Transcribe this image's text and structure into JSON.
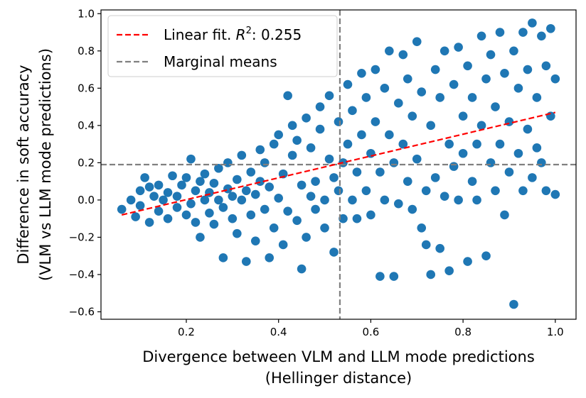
{
  "chart_data": {
    "type": "scatter",
    "xlabel_line1": "Divergence between VLM and LLM mode predictions",
    "xlabel_line2": "(Hellinger distance)",
    "ylabel_line1": "Difference in soft accuracy",
    "ylabel_line2": "(VLM vs LLM mode predictions)",
    "xlim": [
      0.015,
      1.045
    ],
    "ylim": [
      -0.64,
      1.02
    ],
    "xticks": [
      0.2,
      0.4,
      0.6,
      0.8,
      1.0
    ],
    "xtick_labels": [
      "0.2",
      "0.4",
      "0.6",
      "0.8",
      "1.0"
    ],
    "yticks": [
      -0.6,
      -0.4,
      -0.2,
      0.0,
      0.2,
      0.4,
      0.6,
      0.8,
      1.0
    ],
    "ytick_labels": [
      "−0.6",
      "−0.4",
      "−0.2",
      "0.0",
      "0.2",
      "0.4",
      "0.6",
      "0.8",
      "1.0"
    ],
    "legend": [
      {
        "label": "Linear fit. ",
        "math_label": "R",
        "superscript": "2",
        "value_label": ": 0.255",
        "color": "#ff0000",
        "style": "dashed"
      },
      {
        "label": "Marginal means",
        "color": "#808080",
        "style": "dashed"
      }
    ],
    "legend_position": "top-left",
    "fit_line": {
      "x": [
        0.06,
        1.0
      ],
      "y": [
        -0.08,
        0.47
      ],
      "color": "#ff0000"
    },
    "marginal_means": {
      "x": 0.533,
      "y": 0.19,
      "color": "#808080"
    },
    "series": [
      {
        "name": "points",
        "color": "#1f77b4",
        "points": [
          [
            0.06,
            -0.05
          ],
          [
            0.08,
            0.0
          ],
          [
            0.09,
            -0.09
          ],
          [
            0.1,
            0.05
          ],
          [
            0.1,
            -0.03
          ],
          [
            0.11,
            0.12
          ],
          [
            0.12,
            0.07
          ],
          [
            0.12,
            -0.12
          ],
          [
            0.13,
            0.02
          ],
          [
            0.14,
            0.08
          ],
          [
            0.14,
            -0.06
          ],
          [
            0.15,
            0.0
          ],
          [
            0.16,
            0.04
          ],
          [
            0.16,
            -0.1
          ],
          [
            0.17,
            0.13
          ],
          [
            0.18,
            0.02
          ],
          [
            0.18,
            -0.04
          ],
          [
            0.19,
            0.08
          ],
          [
            0.2,
            -0.08
          ],
          [
            0.2,
            0.12
          ],
          [
            0.21,
            0.22
          ],
          [
            0.21,
            -0.02
          ],
          [
            0.22,
            0.05
          ],
          [
            0.22,
            -0.12
          ],
          [
            0.23,
            0.1
          ],
          [
            0.23,
            -0.2
          ],
          [
            0.24,
            0.0
          ],
          [
            0.24,
            0.14
          ],
          [
            0.25,
            -0.07
          ],
          [
            0.25,
            0.04
          ],
          [
            0.26,
            -0.13
          ],
          [
            0.26,
            0.09
          ],
          [
            0.27,
            0.17
          ],
          [
            0.27,
            0.0
          ],
          [
            0.28,
            -0.04
          ],
          [
            0.28,
            -0.31
          ],
          [
            0.29,
            0.06
          ],
          [
            0.29,
            0.2
          ],
          [
            0.3,
            -0.1
          ],
          [
            0.3,
            0.02
          ],
          [
            0.31,
            0.11
          ],
          [
            0.31,
            -0.18
          ],
          [
            0.32,
            0.24
          ],
          [
            0.32,
            0.0
          ],
          [
            0.33,
            0.05
          ],
          [
            0.33,
            -0.33
          ],
          [
            0.34,
            -0.08
          ],
          [
            0.34,
            0.15
          ],
          [
            0.35,
            0.03
          ],
          [
            0.35,
            -0.22
          ],
          [
            0.36,
            0.1
          ],
          [
            0.36,
            0.27
          ],
          [
            0.37,
            -0.05
          ],
          [
            0.37,
            0.2
          ],
          [
            0.38,
            -0.31
          ],
          [
            0.38,
            0.07
          ],
          [
            0.39,
            0.3
          ],
          [
            0.39,
            -0.15
          ],
          [
            0.4,
            0.01
          ],
          [
            0.4,
            0.35
          ],
          [
            0.41,
            -0.24
          ],
          [
            0.41,
            0.14
          ],
          [
            0.42,
            0.56
          ],
          [
            0.42,
            -0.06
          ],
          [
            0.43,
            0.24
          ],
          [
            0.43,
            0.4
          ],
          [
            0.44,
            -0.11
          ],
          [
            0.44,
            0.32
          ],
          [
            0.45,
            -0.37
          ],
          [
            0.45,
            0.08
          ],
          [
            0.46,
            0.44
          ],
          [
            0.46,
            -0.2
          ],
          [
            0.47,
            0.02
          ],
          [
            0.47,
            0.28
          ],
          [
            0.48,
            0.1
          ],
          [
            0.48,
            -0.05
          ],
          [
            0.49,
            0.38
          ],
          [
            0.49,
            0.5
          ],
          [
            0.5,
            0.0
          ],
          [
            0.5,
            -0.15
          ],
          [
            0.51,
            0.22
          ],
          [
            0.51,
            0.56
          ],
          [
            0.52,
            0.12
          ],
          [
            0.52,
            -0.28
          ],
          [
            0.53,
            0.42
          ],
          [
            0.53,
            0.05
          ],
          [
            0.54,
            0.2
          ],
          [
            0.54,
            -0.1
          ],
          [
            0.55,
            0.62
          ],
          [
            0.55,
            0.3
          ],
          [
            0.56,
            0.0
          ],
          [
            0.56,
            0.48
          ],
          [
            0.57,
            0.15
          ],
          [
            0.57,
            -0.1
          ],
          [
            0.58,
            0.68
          ],
          [
            0.58,
            0.35
          ],
          [
            0.59,
            0.05
          ],
          [
            0.59,
            0.55
          ],
          [
            0.6,
            0.25
          ],
          [
            0.6,
            -0.08
          ],
          [
            0.61,
            0.42
          ],
          [
            0.61,
            0.7
          ],
          [
            0.62,
            -0.41
          ],
          [
            0.62,
            0.15
          ],
          [
            0.63,
            0.6
          ],
          [
            0.63,
            0.0
          ],
          [
            0.64,
            0.35
          ],
          [
            0.64,
            0.8
          ],
          [
            0.65,
            -0.41
          ],
          [
            0.65,
            0.2
          ],
          [
            0.66,
            0.52
          ],
          [
            0.66,
            -0.02
          ],
          [
            0.67,
            0.78
          ],
          [
            0.67,
            0.3
          ],
          [
            0.68,
            0.1
          ],
          [
            0.68,
            0.65
          ],
          [
            0.69,
            -0.05
          ],
          [
            0.69,
            0.45
          ],
          [
            0.7,
            0.85
          ],
          [
            0.7,
            0.22
          ],
          [
            0.71,
            -0.15
          ],
          [
            0.71,
            0.58
          ],
          [
            0.72,
            0.05
          ],
          [
            0.72,
            -0.24
          ],
          [
            0.73,
            0.4
          ],
          [
            0.73,
            -0.4
          ],
          [
            0.74,
            0.7
          ],
          [
            0.74,
            0.12
          ],
          [
            0.75,
            -0.26
          ],
          [
            0.75,
            0.55
          ],
          [
            0.76,
            0.8
          ],
          [
            0.76,
            0.02
          ],
          [
            0.77,
            0.3
          ],
          [
            0.77,
            -0.38
          ],
          [
            0.78,
            0.62
          ],
          [
            0.78,
            0.18
          ],
          [
            0.79,
            0.82
          ],
          [
            0.79,
            0.0
          ],
          [
            0.8,
            0.45
          ],
          [
            0.8,
            0.25
          ],
          [
            0.81,
            0.72
          ],
          [
            0.81,
            -0.33
          ],
          [
            0.82,
            0.1
          ],
          [
            0.82,
            0.55
          ],
          [
            0.83,
            0.3
          ],
          [
            0.83,
            0.0
          ],
          [
            0.84,
            0.88
          ],
          [
            0.84,
            0.4
          ],
          [
            0.85,
            0.65
          ],
          [
            0.85,
            -0.3
          ],
          [
            0.86,
            0.2
          ],
          [
            0.86,
            0.78
          ],
          [
            0.87,
            0.05
          ],
          [
            0.87,
            0.5
          ],
          [
            0.88,
            0.9
          ],
          [
            0.88,
            0.3
          ],
          [
            0.89,
            -0.08
          ],
          [
            0.89,
            0.68
          ],
          [
            0.9,
            0.42
          ],
          [
            0.9,
            0.15
          ],
          [
            0.91,
            -0.56
          ],
          [
            0.91,
            0.8
          ],
          [
            0.92,
            0.6
          ],
          [
            0.92,
            0.25
          ],
          [
            0.93,
            0.9
          ],
          [
            0.93,
            0.05
          ],
          [
            0.94,
            0.7
          ],
          [
            0.94,
            0.38
          ],
          [
            0.95,
            0.95
          ],
          [
            0.95,
            0.12
          ],
          [
            0.96,
            0.55
          ],
          [
            0.96,
            0.28
          ],
          [
            0.97,
            0.88
          ],
          [
            0.97,
            0.2
          ],
          [
            0.98,
            0.72
          ],
          [
            0.98,
            0.05
          ],
          [
            0.99,
            0.92
          ],
          [
            0.99,
            0.45
          ],
          [
            1.0,
            0.65
          ],
          [
            1.0,
            0.03
          ]
        ]
      }
    ]
  }
}
